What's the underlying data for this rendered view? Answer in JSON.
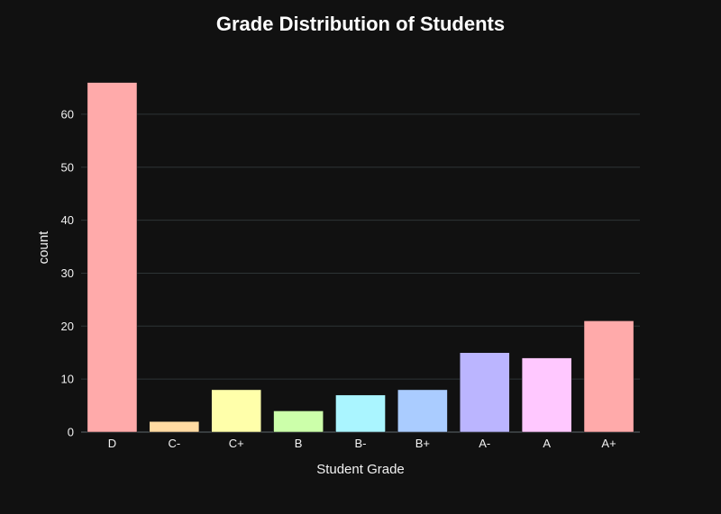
{
  "chart_data": {
    "type": "bar",
    "title": "Grade Distribution of Students",
    "xlabel": "Student Grade",
    "ylabel": "count",
    "categories": [
      "D",
      "C-",
      "C+",
      "B",
      "B-",
      "B+",
      "A-",
      "A",
      "A+"
    ],
    "values": [
      66,
      2,
      8,
      4,
      7,
      8,
      15,
      14,
      21
    ],
    "colors": [
      "#FFAAAA",
      "#FFDAA2",
      "#FFFFAA",
      "#CCFFAA",
      "#AAF5FF",
      "#AACCFF",
      "#BBB5FF",
      "#FFC8FF",
      "#FFAAAA"
    ],
    "yticks": [
      0,
      10,
      20,
      30,
      40,
      50,
      60
    ],
    "ylim": [
      0,
      69.5
    ],
    "grid": true,
    "background": "#111111"
  }
}
